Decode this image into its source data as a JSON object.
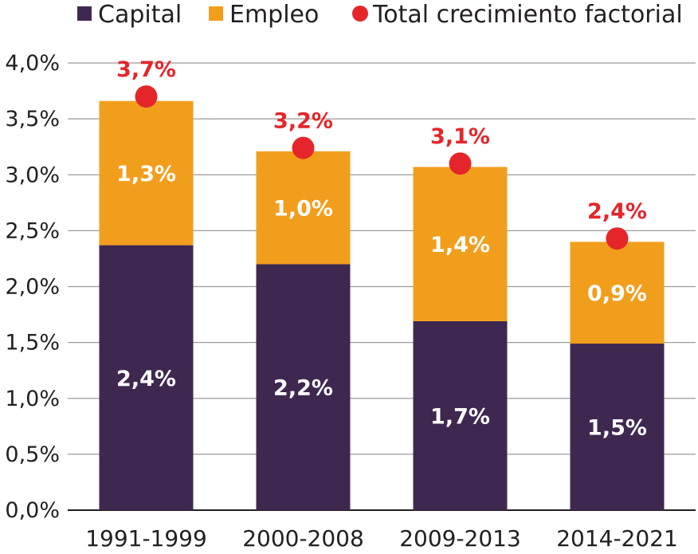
{
  "chart_data": {
    "type": "bar",
    "stacked": true,
    "categories": [
      "1991-1999",
      "2000-2008",
      "2009-2013",
      "2014-2021"
    ],
    "series": [
      {
        "name": "Capital",
        "values": [
          2.37,
          2.2,
          1.69,
          1.49
        ],
        "labels": [
          "2,4%",
          "2,2%",
          "1,7%",
          "1,5%"
        ],
        "color": "#3f2850"
      },
      {
        "name": "Empleo",
        "values": [
          1.29,
          1.01,
          1.38,
          0.91
        ],
        "labels": [
          "1,3%",
          "1,0%",
          "1,4%",
          "0,9%"
        ],
        "color": "#f29e1d"
      }
    ],
    "total": {
      "name": "Total crecimiento factorial",
      "values": [
        3.7,
        3.24,
        3.1,
        2.43
      ],
      "labels": [
        "3,7%",
        "3,2%",
        "3,1%",
        "2,4%"
      ],
      "color": "#e4262b"
    },
    "yticks": [
      "0,0%",
      "0,5%",
      "1,0%",
      "1,5%",
      "2,0%",
      "2,5%",
      "3,0%",
      "3,5%",
      "4,0%"
    ],
    "ylim": [
      0,
      4
    ],
    "grid": true,
    "legend_position": "top"
  }
}
